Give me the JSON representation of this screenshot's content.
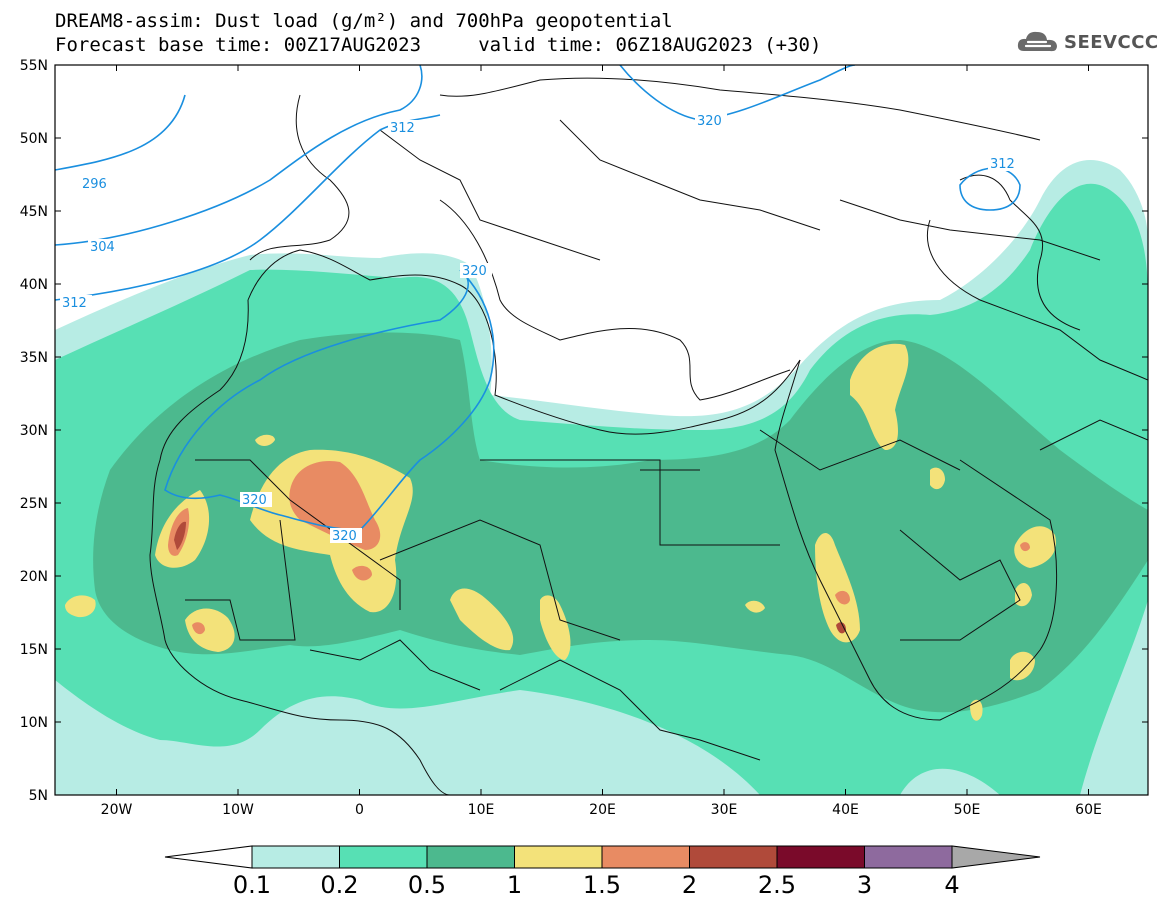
{
  "header": {
    "line1": "DREAM8-assim: Dust load (g/m²) and 700hPa geopotential",
    "line2": "Forecast base time: 00Z17AUG2023     valid time: 06Z18AUG2023 (+30)"
  },
  "logo": {
    "text": "SEEVCCC",
    "icon": "cloud-icon"
  },
  "axes": {
    "lat_labels": [
      "55N",
      "50N",
      "45N",
      "40N",
      "35N",
      "30N",
      "25N",
      "20N",
      "15N",
      "10N",
      "5N"
    ],
    "lon_labels": [
      "20W",
      "10W",
      "0",
      "10E",
      "20E",
      "30E",
      "40E",
      "50E",
      "60E"
    ]
  },
  "colorbar": {
    "labels": [
      "0.1",
      "0.2",
      "0.5",
      "1",
      "1.5",
      "2",
      "2.5",
      "3",
      "4"
    ],
    "colors": [
      "#b7ece4",
      "#57e0b4",
      "#4cb98e",
      "#f3e27a",
      "#e88b63",
      "#b04a3a",
      "#7a0a2a",
      "#8e6a9e"
    ],
    "under_color": "#ffffff",
    "over_color": "#a8a8a8"
  },
  "contours": {
    "color": "#1a8fdf",
    "labels": [
      "296",
      "304",
      "312",
      "320",
      "312",
      "320",
      "320",
      "312"
    ]
  }
}
